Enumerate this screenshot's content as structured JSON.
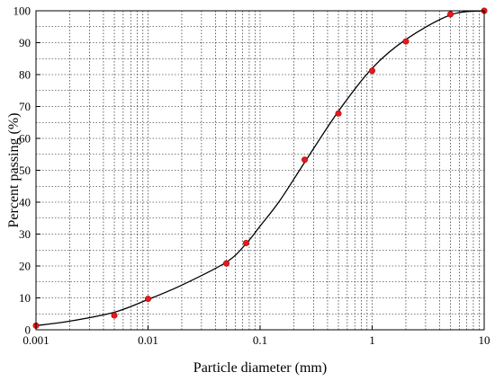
{
  "chart_data": {
    "type": "scatter",
    "title": "",
    "xlabel": "Particle diameter (mm)",
    "ylabel": "Percent passing (%)",
    "x_scale": "log",
    "xlim": [
      0.001,
      10
    ],
    "ylim": [
      0,
      100
    ],
    "grid": true,
    "x_ticks": [
      {
        "value": 0.001,
        "label": "0.001"
      },
      {
        "value": 0.01,
        "label": "0.01"
      },
      {
        "value": 0.1,
        "label": "0.1"
      },
      {
        "value": 1,
        "label": "1"
      },
      {
        "value": 10,
        "label": "10"
      }
    ],
    "y_ticks": [
      {
        "value": 0,
        "label": "0"
      },
      {
        "value": 10,
        "label": "10"
      },
      {
        "value": 20,
        "label": "20"
      },
      {
        "value": 30,
        "label": "30"
      },
      {
        "value": 40,
        "label": "40"
      },
      {
        "value": 50,
        "label": "50"
      },
      {
        "value": 60,
        "label": "60"
      },
      {
        "value": 70,
        "label": "70"
      },
      {
        "value": 80,
        "label": "80"
      },
      {
        "value": 90,
        "label": "90"
      },
      {
        "value": 100,
        "label": "100"
      }
    ],
    "series": [
      {
        "kind": "points",
        "color": "#e41a1c",
        "x": [
          0.001,
          0.005,
          0.01,
          0.05,
          0.075,
          0.25,
          0.5,
          1,
          2,
          5,
          10
        ],
        "y": [
          1.3,
          4.5,
          9.7,
          20.8,
          27.2,
          53.3,
          67.8,
          81.2,
          90.4,
          98.9,
          100
        ]
      },
      {
        "kind": "fitted-curve",
        "color": "#000000",
        "x": [
          0.001,
          0.002,
          0.005,
          0.01,
          0.02,
          0.05,
          0.075,
          0.1,
          0.15,
          0.25,
          0.5,
          1,
          2,
          5,
          10
        ],
        "y": [
          1.3,
          2.7,
          5.5,
          9.5,
          14,
          21.2,
          27,
          32.5,
          40.5,
          52.5,
          68.5,
          82,
          91,
          98.7,
          100
        ]
      }
    ]
  }
}
